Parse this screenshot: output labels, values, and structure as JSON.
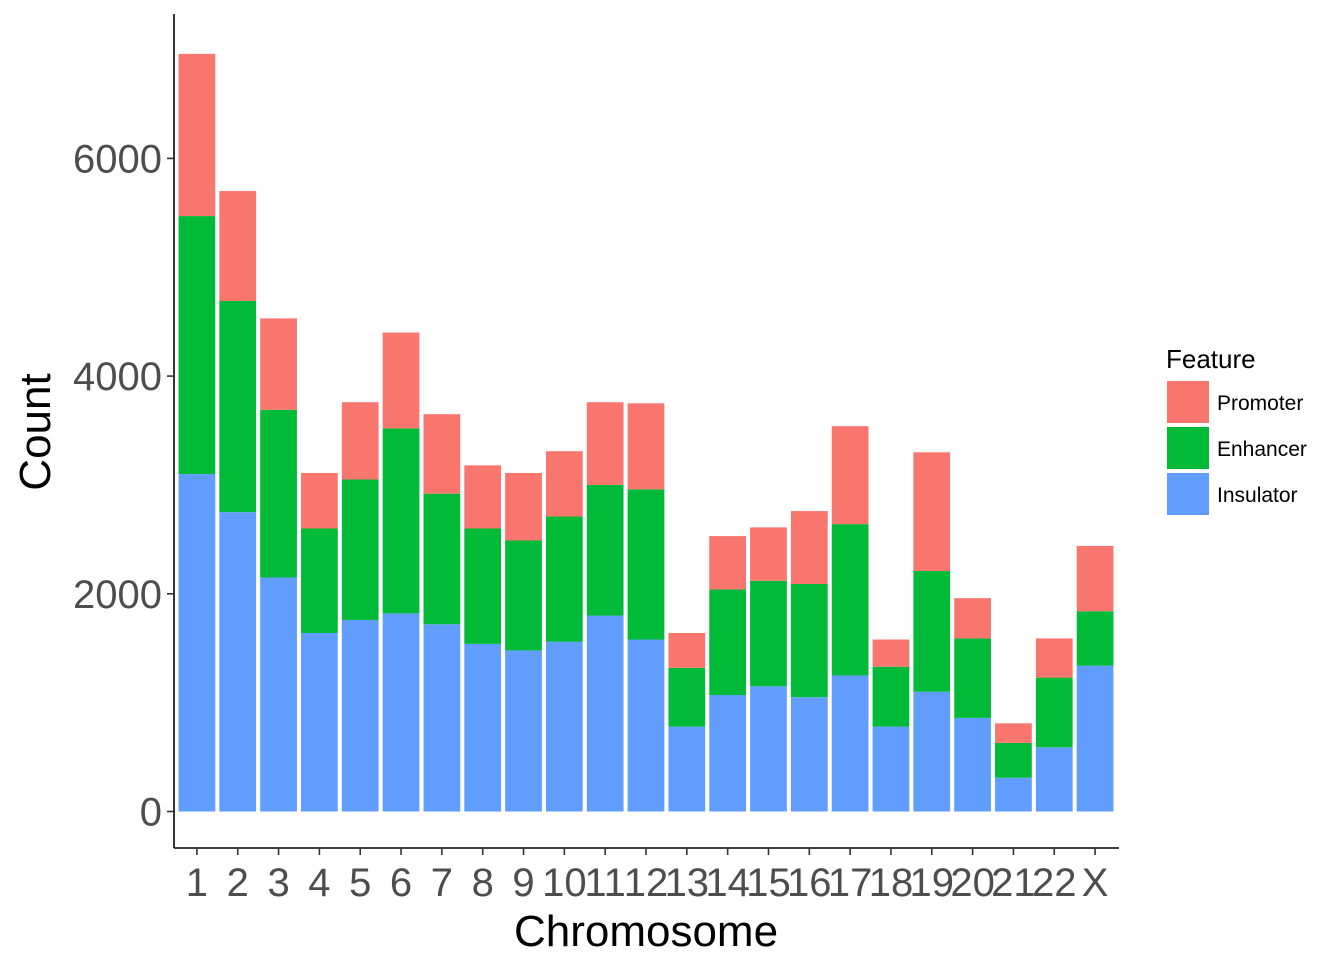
{
  "chart_data": {
    "type": "bar",
    "stacked": true,
    "title": "",
    "xlabel": "Chromosome",
    "ylabel": "Count",
    "ylim": [
      0,
      7000
    ],
    "yticks": [
      0,
      2000,
      4000,
      6000
    ],
    "ytick_labels": [
      "0",
      "2000",
      "4000",
      "6000"
    ],
    "grid": false,
    "legend_position": "right",
    "legend_title": "Feature",
    "categories": [
      "1",
      "2",
      "3",
      "4",
      "5",
      "6",
      "7",
      "8",
      "9",
      "10",
      "11",
      "12",
      "13",
      "14",
      "15",
      "16",
      "17",
      "18",
      "19",
      "20",
      "21",
      "22",
      "X"
    ],
    "series": [
      {
        "name": "Insulator",
        "color": "#619cff",
        "values": [
          3100,
          2750,
          2150,
          1640,
          1760,
          1820,
          1720,
          1540,
          1480,
          1560,
          1800,
          1580,
          780,
          1070,
          1150,
          1050,
          1250,
          780,
          1100,
          860,
          310,
          590,
          1340
        ]
      },
      {
        "name": "Enhancer",
        "color": "#00ba38",
        "values": [
          2370,
          1940,
          1540,
          960,
          1290,
          1700,
          1200,
          1060,
          1010,
          1150,
          1200,
          1380,
          540,
          970,
          970,
          1040,
          1390,
          550,
          1110,
          730,
          320,
          640,
          500
        ]
      },
      {
        "name": "Promoter",
        "color": "#f8766d",
        "values": [
          1490,
          1010,
          840,
          510,
          710,
          880,
          730,
          580,
          620,
          600,
          760,
          790,
          320,
          490,
          490,
          670,
          900,
          250,
          1090,
          370,
          180,
          360,
          600
        ]
      }
    ],
    "legend_order": [
      "Promoter",
      "Enhancer",
      "Insulator"
    ]
  }
}
